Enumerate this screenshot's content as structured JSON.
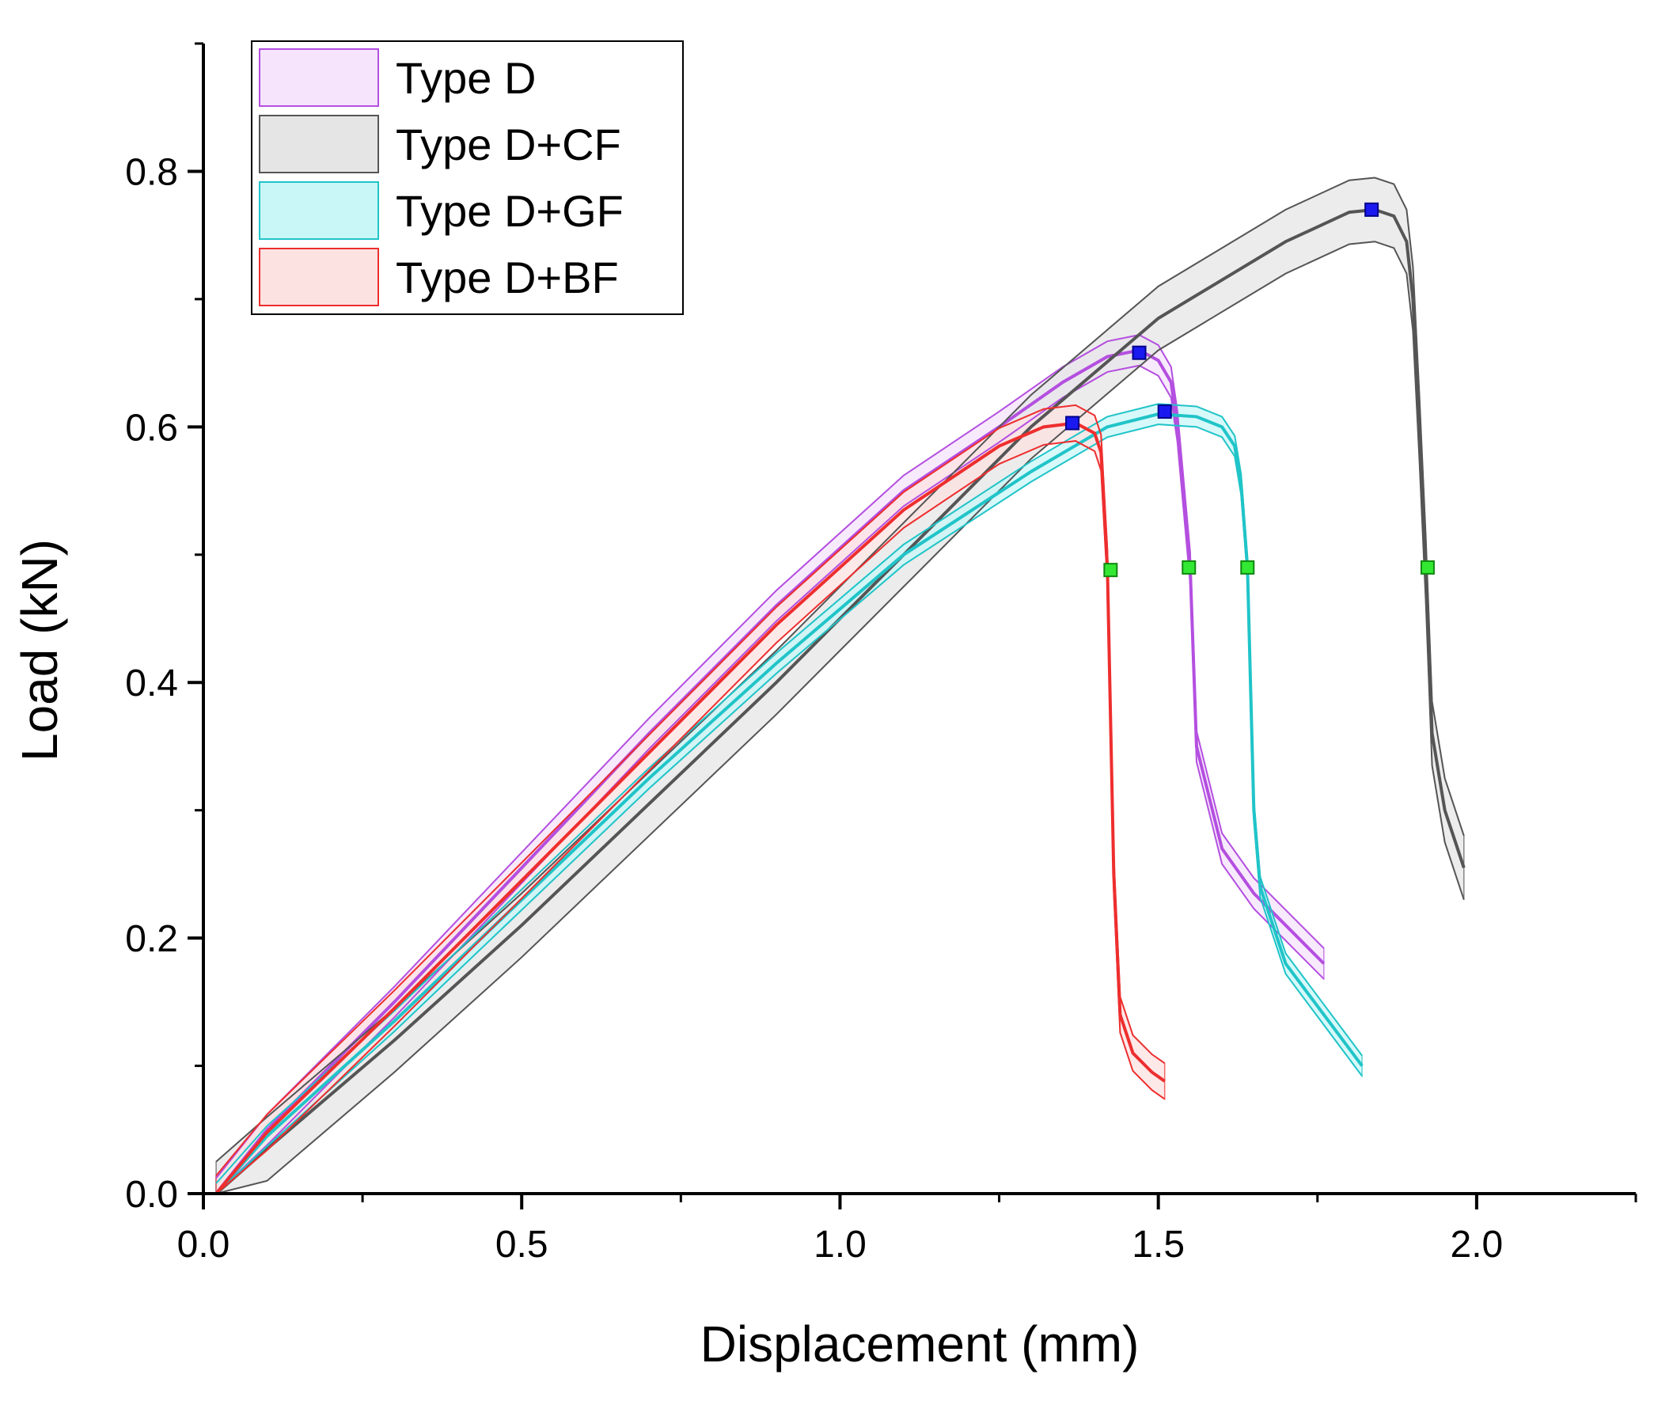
{
  "chart_data": {
    "type": "line",
    "title": "",
    "xlabel": "Displacement (mm)",
    "ylabel": "Load (kN)",
    "xlim": [
      0,
      2.25
    ],
    "ylim": [
      0,
      0.9
    ],
    "xticks": [
      "0.0",
      "0.5",
      "1.0",
      "1.5",
      "2.0"
    ],
    "xtick_values": [
      0,
      0.5,
      1.0,
      1.5,
      2.0
    ],
    "xminor": [
      0.25,
      0.75,
      1.25,
      1.75,
      2.25
    ],
    "yticks": [
      "0.0",
      "0.2",
      "0.4",
      "0.6",
      "0.8"
    ],
    "ytick_values": [
      0,
      0.2,
      0.4,
      0.6,
      0.8
    ],
    "yminor": [
      0.1,
      0.3,
      0.5,
      0.7,
      0.9
    ],
    "grid": false,
    "legend_position": "top-left",
    "series": [
      {
        "name": "Type D",
        "color": "#b44fe0",
        "fill": "#f6e3fc",
        "x": [
          0.02,
          0.1,
          0.3,
          0.5,
          0.7,
          0.9,
          1.1,
          1.25,
          1.35,
          1.42,
          1.47,
          1.5,
          1.52,
          1.53,
          1.54,
          1.55,
          1.56,
          1.6,
          1.65,
          1.7,
          1.76
        ],
        "y": [
          0.0,
          0.05,
          0.15,
          0.255,
          0.36,
          0.46,
          0.55,
          0.6,
          0.635,
          0.655,
          0.66,
          0.652,
          0.635,
          0.6,
          0.545,
          0.49,
          0.35,
          0.27,
          0.235,
          0.21,
          0.18
        ],
        "band": 0.012,
        "max_point": [
          1.47,
          0.658
        ],
        "break_point": [
          1.548,
          0.49
        ]
      },
      {
        "name": "Type D+CF",
        "color": "#555555",
        "fill": "#e5e5e5",
        "x": [
          0.02,
          0.1,
          0.3,
          0.5,
          0.7,
          0.9,
          1.1,
          1.3,
          1.5,
          1.7,
          1.8,
          1.84,
          1.87,
          1.89,
          1.9,
          1.91,
          1.92,
          1.93,
          1.95,
          1.98
        ],
        "y": [
          0.0,
          0.035,
          0.12,
          0.21,
          0.305,
          0.4,
          0.5,
          0.6,
          0.685,
          0.745,
          0.768,
          0.77,
          0.765,
          0.745,
          0.7,
          0.6,
          0.49,
          0.36,
          0.3,
          0.255
        ],
        "band": 0.025,
        "max_point": [
          1.835,
          0.77
        ],
        "break_point": [
          1.923,
          0.49
        ]
      },
      {
        "name": "Type D+GF",
        "color": "#20c4c8",
        "fill": "#c9f7f8",
        "x": [
          0.02,
          0.1,
          0.3,
          0.5,
          0.7,
          0.9,
          1.1,
          1.3,
          1.42,
          1.5,
          1.56,
          1.6,
          1.62,
          1.63,
          1.64,
          1.65,
          1.66,
          1.7,
          1.76,
          1.82
        ],
        "y": [
          0.0,
          0.045,
          0.135,
          0.23,
          0.325,
          0.415,
          0.5,
          0.565,
          0.6,
          0.61,
          0.608,
          0.6,
          0.585,
          0.555,
          0.49,
          0.3,
          0.24,
          0.18,
          0.14,
          0.1
        ],
        "band": 0.008,
        "max_point": [
          1.51,
          0.612
        ],
        "break_point": [
          1.64,
          0.49
        ]
      },
      {
        "name": "Type D+BF",
        "color": "#ee2e2e",
        "fill": "#fde2e2",
        "x": [
          0.02,
          0.1,
          0.3,
          0.5,
          0.7,
          0.9,
          1.1,
          1.25,
          1.32,
          1.37,
          1.4,
          1.41,
          1.42,
          1.43,
          1.44,
          1.46,
          1.49,
          1.51
        ],
        "y": [
          0.0,
          0.048,
          0.145,
          0.245,
          0.345,
          0.445,
          0.535,
          0.585,
          0.6,
          0.603,
          0.595,
          0.58,
          0.49,
          0.25,
          0.14,
          0.11,
          0.095,
          0.088
        ],
        "band": 0.014,
        "max_point": [
          1.365,
          0.603
        ],
        "break_point": [
          1.425,
          0.488
        ]
      }
    ],
    "marker_colors": {
      "max": "#1a1af0",
      "break": "#33e833"
    }
  }
}
